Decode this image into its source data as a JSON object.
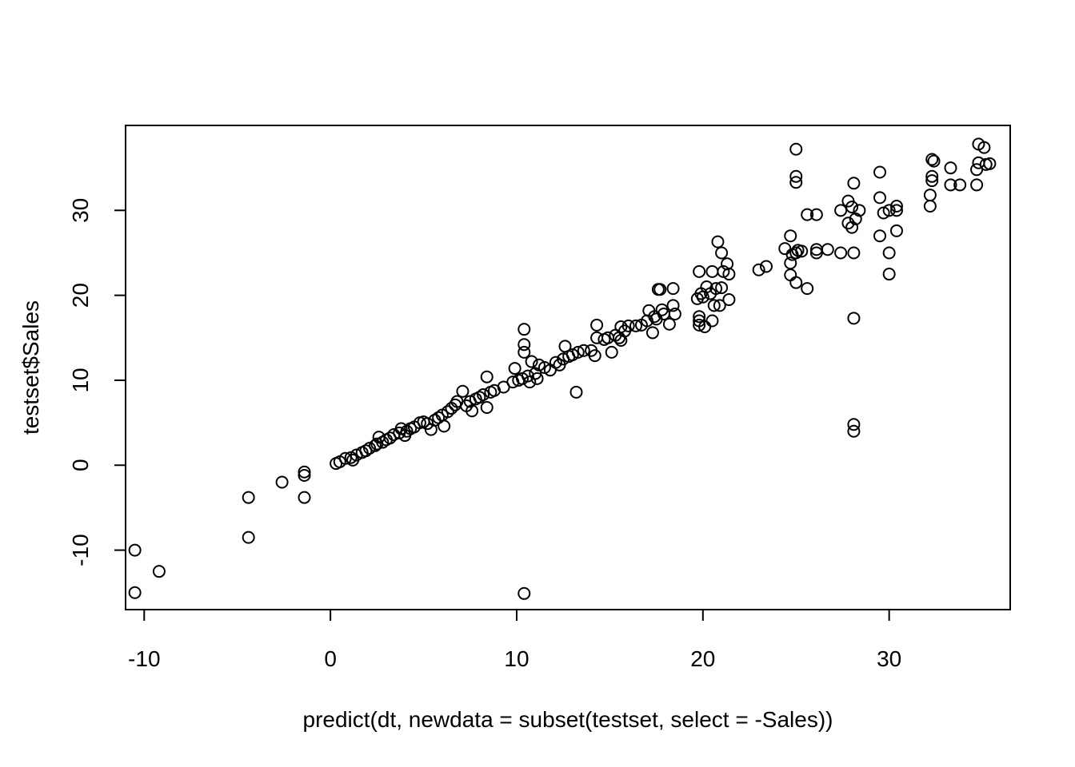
{
  "chart_data": {
    "type": "scatter",
    "title": "",
    "xlabel": "predict(dt, newdata = subset(testset, select = -Sales))",
    "ylabel": "testset$Sales",
    "xlim": [
      -11.0,
      36.5
    ],
    "ylim": [
      -17.0,
      40.0
    ],
    "x_ticks": [
      -10,
      0,
      10,
      20,
      30
    ],
    "y_ticks": [
      -10,
      0,
      10,
      20,
      30
    ],
    "x_tick_labels": [
      "-10",
      "0",
      "10",
      "20",
      "30"
    ],
    "y_tick_labels": [
      "-10",
      "0",
      "10",
      "20",
      "30"
    ],
    "marker": "open-circle",
    "grid": false,
    "points": [
      [
        -10.5,
        -15.0
      ],
      [
        -10.5,
        -10.0
      ],
      [
        -9.2,
        -12.5
      ],
      [
        -4.4,
        -8.5
      ],
      [
        -4.4,
        -3.8
      ],
      [
        -2.6,
        -2.0
      ],
      [
        -1.4,
        -3.8
      ],
      [
        -1.4,
        -1.2
      ],
      [
        -1.4,
        -0.8
      ],
      [
        0.3,
        0.2
      ],
      [
        0.5,
        0.4
      ],
      [
        0.8,
        0.8
      ],
      [
        1.1,
        0.9
      ],
      [
        1.2,
        0.6
      ],
      [
        1.4,
        1.2
      ],
      [
        1.7,
        1.5
      ],
      [
        1.9,
        1.7
      ],
      [
        2.1,
        2.0
      ],
      [
        2.4,
        2.3
      ],
      [
        2.5,
        2.5
      ],
      [
        2.6,
        3.3
      ],
      [
        2.8,
        2.7
      ],
      [
        3.0,
        3.0
      ],
      [
        3.2,
        3.2
      ],
      [
        3.4,
        3.6
      ],
      [
        3.7,
        3.8
      ],
      [
        3.8,
        4.3
      ],
      [
        4.0,
        3.5
      ],
      [
        4.1,
        4.0
      ],
      [
        4.3,
        4.3
      ],
      [
        4.5,
        4.5
      ],
      [
        4.8,
        5.0
      ],
      [
        5.0,
        5.1
      ],
      [
        5.2,
        4.9
      ],
      [
        5.4,
        4.2
      ],
      [
        5.6,
        5.3
      ],
      [
        5.8,
        5.6
      ],
      [
        6.0,
        5.9
      ],
      [
        6.1,
        4.6
      ],
      [
        6.3,
        6.3
      ],
      [
        6.5,
        6.7
      ],
      [
        6.7,
        7.1
      ],
      [
        6.8,
        7.5
      ],
      [
        7.1,
        8.7
      ],
      [
        7.3,
        7.0
      ],
      [
        7.5,
        7.5
      ],
      [
        7.6,
        6.4
      ],
      [
        7.8,
        7.8
      ],
      [
        8.0,
        8.0
      ],
      [
        8.2,
        8.3
      ],
      [
        8.4,
        6.8
      ],
      [
        8.4,
        10.4
      ],
      [
        8.6,
        8.6
      ],
      [
        8.8,
        8.8
      ],
      [
        9.3,
        9.2
      ],
      [
        9.8,
        9.8
      ],
      [
        9.9,
        11.4
      ],
      [
        10.1,
        10.0
      ],
      [
        10.3,
        10.2
      ],
      [
        10.4,
        13.3
      ],
      [
        10.4,
        14.2
      ],
      [
        10.4,
        16.0
      ],
      [
        10.4,
        -15.1
      ],
      [
        10.6,
        10.5
      ],
      [
        10.7,
        9.8
      ],
      [
        10.8,
        12.2
      ],
      [
        11.0,
        10.8
      ],
      [
        11.1,
        10.2
      ],
      [
        11.2,
        11.8
      ],
      [
        11.5,
        11.5
      ],
      [
        11.8,
        11.2
      ],
      [
        12.1,
        12.1
      ],
      [
        12.3,
        11.8
      ],
      [
        12.5,
        12.5
      ],
      [
        12.6,
        14.0
      ],
      [
        12.8,
        12.8
      ],
      [
        13.0,
        13.0
      ],
      [
        13.2,
        8.6
      ],
      [
        13.3,
        13.3
      ],
      [
        13.6,
        13.5
      ],
      [
        14.0,
        13.5
      ],
      [
        14.2,
        12.9
      ],
      [
        14.3,
        15.0
      ],
      [
        14.3,
        16.5
      ],
      [
        14.7,
        14.8
      ],
      [
        14.9,
        15.0
      ],
      [
        15.1,
        13.3
      ],
      [
        15.3,
        15.3
      ],
      [
        15.5,
        15.0
      ],
      [
        15.6,
        14.7
      ],
      [
        15.6,
        16.3
      ],
      [
        15.8,
        15.8
      ],
      [
        16.0,
        16.4
      ],
      [
        16.4,
        16.4
      ],
      [
        16.7,
        16.5
      ],
      [
        17.0,
        17.0
      ],
      [
        17.1,
        18.2
      ],
      [
        17.3,
        15.6
      ],
      [
        17.4,
        17.5
      ],
      [
        17.5,
        17.2
      ],
      [
        17.6,
        20.7
      ],
      [
        17.7,
        20.7
      ],
      [
        17.8,
        18.3
      ],
      [
        17.9,
        17.8
      ],
      [
        18.2,
        16.6
      ],
      [
        18.4,
        18.8
      ],
      [
        18.4,
        20.8
      ],
      [
        18.5,
        17.8
      ],
      [
        19.7,
        19.6
      ],
      [
        19.8,
        16.5
      ],
      [
        19.8,
        17.0
      ],
      [
        19.8,
        17.5
      ],
      [
        19.8,
        22.8
      ],
      [
        19.9,
        20.2
      ],
      [
        20.0,
        19.8
      ],
      [
        20.1,
        16.3
      ],
      [
        20.2,
        21.0
      ],
      [
        20.4,
        20.2
      ],
      [
        20.5,
        22.8
      ],
      [
        20.5,
        17.0
      ],
      [
        20.6,
        18.8
      ],
      [
        20.7,
        20.8
      ],
      [
        20.8,
        26.3
      ],
      [
        20.9,
        18.8
      ],
      [
        21.0,
        20.9
      ],
      [
        21.0,
        25.0
      ],
      [
        21.1,
        22.8
      ],
      [
        21.3,
        23.7
      ],
      [
        21.4,
        22.5
      ],
      [
        21.4,
        19.5
      ],
      [
        23.0,
        23.0
      ],
      [
        23.4,
        23.4
      ],
      [
        24.4,
        25.5
      ],
      [
        24.7,
        23.8
      ],
      [
        24.7,
        22.4
      ],
      [
        24.7,
        27.0
      ],
      [
        24.8,
        24.8
      ],
      [
        25.0,
        25.0
      ],
      [
        25.0,
        21.5
      ],
      [
        25.0,
        33.3
      ],
      [
        25.0,
        34.0
      ],
      [
        25.0,
        37.2
      ],
      [
        25.1,
        25.3
      ],
      [
        25.3,
        25.2
      ],
      [
        25.6,
        20.8
      ],
      [
        25.6,
        29.5
      ],
      [
        26.1,
        25.0
      ],
      [
        26.1,
        25.4
      ],
      [
        26.1,
        29.5
      ],
      [
        26.7,
        25.4
      ],
      [
        27.4,
        25.0
      ],
      [
        27.4,
        30.0
      ],
      [
        27.8,
        31.1
      ],
      [
        27.8,
        28.5
      ],
      [
        28.0,
        30.4
      ],
      [
        28.0,
        28.0
      ],
      [
        28.1,
        17.3
      ],
      [
        28.1,
        4.8
      ],
      [
        28.1,
        4.0
      ],
      [
        28.1,
        25.0
      ],
      [
        28.1,
        33.2
      ],
      [
        28.2,
        29.0
      ],
      [
        28.4,
        30.0
      ],
      [
        29.5,
        34.5
      ],
      [
        29.5,
        27.0
      ],
      [
        29.5,
        31.5
      ],
      [
        29.7,
        29.7
      ],
      [
        30.0,
        30.0
      ],
      [
        30.0,
        25.0
      ],
      [
        30.0,
        22.5
      ],
      [
        30.4,
        30.5
      ],
      [
        30.4,
        30.0
      ],
      [
        30.4,
        27.6
      ],
      [
        32.2,
        30.5
      ],
      [
        32.2,
        31.8
      ],
      [
        32.3,
        33.5
      ],
      [
        32.3,
        34.0
      ],
      [
        32.3,
        36.0
      ],
      [
        32.4,
        35.8
      ],
      [
        33.3,
        33.0
      ],
      [
        33.3,
        35.0
      ],
      [
        33.8,
        33.0
      ],
      [
        34.7,
        33.0
      ],
      [
        34.7,
        34.8
      ],
      [
        34.8,
        35.6
      ],
      [
        34.8,
        37.8
      ],
      [
        35.1,
        37.4
      ],
      [
        35.2,
        35.4
      ],
      [
        35.4,
        35.5
      ]
    ]
  }
}
